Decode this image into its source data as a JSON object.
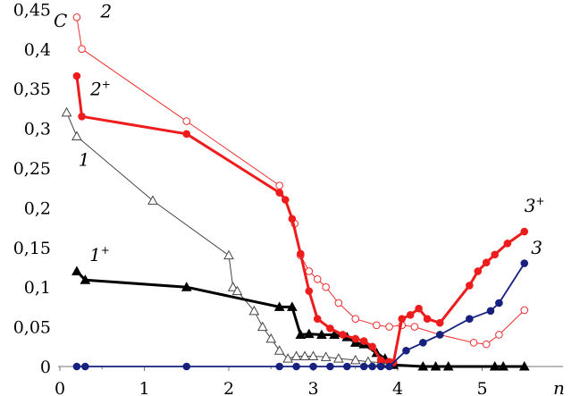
{
  "chart_data": {
    "type": "line",
    "title": "",
    "xlabel": "n",
    "ylabel": "C",
    "xlim": [
      0,
      6.1
    ],
    "ylim": [
      0,
      0.45
    ],
    "x_ticks": [
      "0",
      "1",
      "2",
      "3",
      "4",
      "5"
    ],
    "y_ticks": [
      "0",
      "0,05",
      "0,1",
      "0,15",
      "0,2",
      "0,25",
      "0,3",
      "0,35",
      "0,4",
      "0,45"
    ],
    "grid": false,
    "series": [
      {
        "name": "1",
        "color": "#444444",
        "marker": "triangle-open",
        "line": "thin",
        "points": [
          [
            0.08,
            0.32
          ],
          [
            0.2,
            0.29
          ],
          [
            1.1,
            0.209
          ],
          [
            2.0,
            0.14
          ],
          [
            2.05,
            0.1
          ],
          [
            2.1,
            0.095
          ],
          [
            2.3,
            0.07
          ],
          [
            2.4,
            0.05
          ],
          [
            2.5,
            0.035
          ],
          [
            2.6,
            0.02
          ],
          [
            2.7,
            0.01
          ],
          [
            2.8,
            0.013
          ],
          [
            2.9,
            0.013
          ],
          [
            3.0,
            0.013
          ],
          [
            3.15,
            0.012
          ],
          [
            3.3,
            0.01
          ],
          [
            3.5,
            0.008
          ],
          [
            3.65,
            0.006
          ],
          [
            3.8,
            0.005
          ],
          [
            3.9,
            0.003
          ]
        ]
      },
      {
        "name": "1⁺",
        "color": "#000000",
        "marker": "triangle-filled",
        "line": "thick",
        "points": [
          [
            0.2,
            0.12
          ],
          [
            0.3,
            0.109
          ],
          [
            1.5,
            0.1
          ],
          [
            2.6,
            0.075
          ],
          [
            2.75,
            0.075
          ],
          [
            2.85,
            0.04
          ],
          [
            2.95,
            0.041
          ],
          [
            3.1,
            0.04
          ],
          [
            3.25,
            0.04
          ],
          [
            3.4,
            0.037
          ],
          [
            3.5,
            0.03
          ],
          [
            3.6,
            0.028
          ],
          [
            3.75,
            0.017
          ],
          [
            3.85,
            0.01
          ],
          [
            3.95,
            0.002
          ],
          [
            4.3,
            0.0
          ],
          [
            4.45,
            0.0
          ],
          [
            4.6,
            0.0
          ],
          [
            5.15,
            0.0
          ],
          [
            5.25,
            0.0
          ],
          [
            5.5,
            0.0
          ]
        ]
      },
      {
        "name": "2",
        "color": "#ee2c2c",
        "marker": "circle-open",
        "line": "thin",
        "points": [
          [
            0.2,
            0.44
          ],
          [
            0.26,
            0.4
          ],
          [
            1.5,
            0.309
          ],
          [
            2.6,
            0.228
          ],
          [
            2.78,
            0.18
          ],
          [
            2.85,
            0.14
          ],
          [
            2.95,
            0.12
          ],
          [
            3.05,
            0.11
          ],
          [
            3.15,
            0.1
          ],
          [
            3.3,
            0.08
          ],
          [
            3.5,
            0.06
          ],
          [
            3.75,
            0.052
          ],
          [
            3.9,
            0.05
          ],
          [
            4.05,
            0.052
          ],
          [
            4.2,
            0.05
          ],
          [
            4.5,
            0.04
          ],
          [
            4.9,
            0.03
          ],
          [
            5.05,
            0.028
          ],
          [
            5.2,
            0.04
          ],
          [
            5.5,
            0.071
          ]
        ]
      },
      {
        "name": "2⁺",
        "color": "#ee1c1c",
        "marker": "circle-filled",
        "line": "thick",
        "points": [
          [
            0.2,
            0.366
          ],
          [
            0.26,
            0.315
          ],
          [
            1.5,
            0.293
          ],
          [
            2.6,
            0.219
          ],
          [
            2.67,
            0.21
          ],
          [
            2.75,
            0.186
          ],
          [
            2.85,
            0.142
          ],
          [
            2.95,
            0.095
          ],
          [
            3.05,
            0.06
          ],
          [
            3.2,
            0.048
          ],
          [
            3.35,
            0.04
          ],
          [
            3.5,
            0.035
          ],
          [
            3.6,
            0.032
          ],
          [
            3.7,
            0.025
          ],
          [
            3.8,
            0.008
          ],
          [
            3.9,
            0.006
          ],
          [
            3.95,
            0.005
          ],
          [
            4.05,
            0.06
          ],
          [
            4.15,
            0.065
          ],
          [
            4.25,
            0.073
          ],
          [
            4.35,
            0.06
          ],
          [
            4.5,
            0.055
          ],
          [
            4.85,
            0.102
          ],
          [
            4.95,
            0.12
          ],
          [
            5.05,
            0.131
          ],
          [
            5.15,
            0.141
          ],
          [
            5.3,
            0.155
          ],
          [
            5.5,
            0.17
          ]
        ]
      },
      {
        "name": "3",
        "color": "#16207e",
        "marker": "circle-filled",
        "line": "medium",
        "points": [
          [
            0.2,
            0.0
          ],
          [
            0.3,
            0.0
          ],
          [
            1.5,
            0.0
          ],
          [
            2.6,
            0.0
          ],
          [
            2.8,
            0.0
          ],
          [
            3.0,
            0.0
          ],
          [
            3.2,
            0.0
          ],
          [
            3.4,
            0.0
          ],
          [
            3.6,
            0.0
          ],
          [
            3.7,
            0.0
          ],
          [
            3.8,
            0.0
          ],
          [
            3.9,
            0.0
          ],
          [
            4.1,
            0.02
          ],
          [
            4.3,
            0.03
          ],
          [
            4.5,
            0.04
          ],
          [
            4.85,
            0.06
          ],
          [
            5.1,
            0.07
          ],
          [
            5.2,
            0.08
          ],
          [
            5.5,
            0.13
          ]
        ]
      }
    ],
    "annotations": [
      {
        "series": "1",
        "text": "1",
        "sup": "",
        "x": 0.22,
        "y": 0.253
      },
      {
        "series": "1⁺",
        "text": "1",
        "sup": "+",
        "x": 0.35,
        "y": 0.133
      },
      {
        "series": "2",
        "text": "2",
        "sup": "",
        "x": 0.48,
        "y": 0.44
      },
      {
        "series": "2⁺",
        "text": "2",
        "sup": "+",
        "x": 0.36,
        "y": 0.342
      },
      {
        "series": "3⁺",
        "text": "3",
        "sup": "+",
        "x": 5.5,
        "y": 0.195
      },
      {
        "series": "3",
        "text": "3",
        "sup": "",
        "x": 5.58,
        "y": 0.142
      }
    ]
  }
}
